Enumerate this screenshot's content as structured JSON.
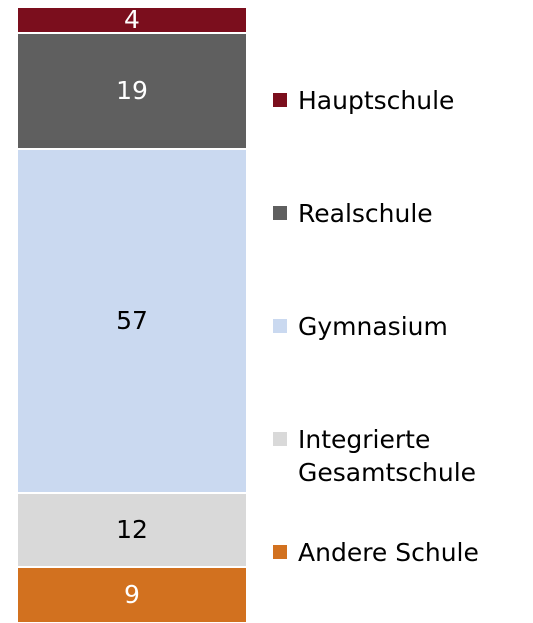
{
  "chart_data": {
    "type": "stacked-bar",
    "series": [
      {
        "name": "Hauptschule",
        "color": "#7b0e1d",
        "values": [
          4
        ]
      },
      {
        "name": "Realschule",
        "color": "#5f5f5f",
        "values": [
          19
        ]
      },
      {
        "name": "Gymnasium",
        "color": "#cad9f0",
        "values": [
          57
        ]
      },
      {
        "name": "Integrierte Gesamtschule",
        "color": "#d9d9d9",
        "values": [
          12
        ]
      },
      {
        "name": "Andere Schule",
        "color": "#d2711f",
        "values": [
          9
        ]
      }
    ]
  }
}
